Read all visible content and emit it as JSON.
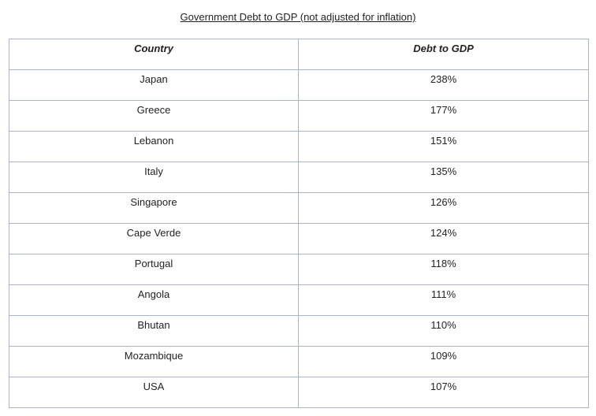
{
  "title": "Government Debt to GDP (not adjusted for inflation)",
  "table": {
    "headers": [
      "Country",
      "Debt to GDP"
    ],
    "rows": [
      [
        "Japan",
        "238%"
      ],
      [
        "Greece",
        "177%"
      ],
      [
        "Lebanon",
        "151%"
      ],
      [
        "Italy",
        "135%"
      ],
      [
        "Singapore",
        "126%"
      ],
      [
        "Cape Verde",
        "124%"
      ],
      [
        "Portugal",
        "118%"
      ],
      [
        "Angola",
        "111%"
      ],
      [
        "Bhutan",
        "110%"
      ],
      [
        "Mozambique",
        "109%"
      ],
      [
        "USA",
        "107%"
      ]
    ]
  },
  "chart_data": {
    "type": "table",
    "title": "Government Debt to GDP (not adjusted for inflation)",
    "columns": [
      "Country",
      "Debt to GDP"
    ],
    "categories": [
      "Japan",
      "Greece",
      "Lebanon",
      "Italy",
      "Singapore",
      "Cape Verde",
      "Portugal",
      "Angola",
      "Bhutan",
      "Mozambique",
      "USA"
    ],
    "values": [
      238,
      177,
      151,
      135,
      126,
      124,
      118,
      111,
      110,
      109,
      107
    ],
    "unit": "%"
  },
  "colors": {
    "border": "#a9b4c6",
    "text": "#222222",
    "background": "#ffffff"
  }
}
